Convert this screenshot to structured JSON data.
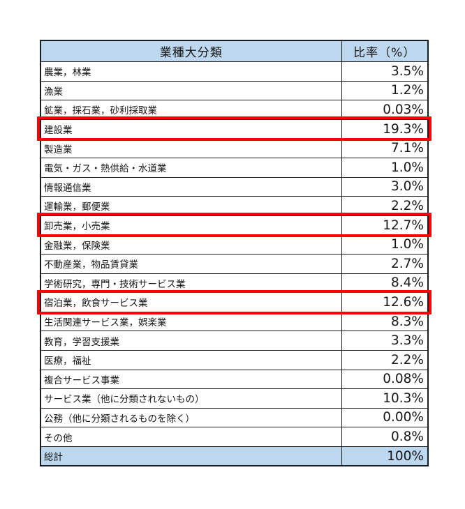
{
  "table": {
    "header": [
      {
        "label": "業種大分類"
      },
      {
        "label": "比率（%）"
      }
    ],
    "rows": [
      {
        "label": "農業，林業",
        "value": "3.5%",
        "highlight": false
      },
      {
        "label": "漁業",
        "value": "1.2%",
        "highlight": false
      },
      {
        "label": "鉱業，採石業，砂利採取業",
        "value": "0.03%",
        "highlight": false
      },
      {
        "label": "建設業",
        "value": "19.3%",
        "highlight": true
      },
      {
        "label": "製造業",
        "value": "7.1%",
        "highlight": false
      },
      {
        "label": "電気・ガス・熱供給・水道業",
        "value": "1.0%",
        "highlight": false
      },
      {
        "label": "情報通信業",
        "value": "3.0%",
        "highlight": false
      },
      {
        "label": "運輸業，郵便業",
        "value": "2.2%",
        "highlight": false
      },
      {
        "label": "卸売業，小売業",
        "value": "12.7%",
        "highlight": true
      },
      {
        "label": "金融業，保険業",
        "value": "1.0%",
        "highlight": false
      },
      {
        "label": "不動産業，物品賃貸業",
        "value": "2.7%",
        "highlight": false
      },
      {
        "label": "学術研究，専門・技術サービス業",
        "value": "8.4%",
        "highlight": false
      },
      {
        "label": "宿泊業，飲食サービス業",
        "value": "12.6%",
        "highlight": true
      },
      {
        "label": "生活関連サービス業，娯楽業",
        "value": "8.3%",
        "highlight": false
      },
      {
        "label": "教育，学習支援業",
        "value": "3.3%",
        "highlight": false
      },
      {
        "label": "医療，福祉",
        "value": "2.2%",
        "highlight": false
      },
      {
        "label": "複合サービス事業",
        "value": "0.08%",
        "highlight": false
      },
      {
        "label": "サービス業（他に分類されないもの）",
        "value": "10.3%",
        "highlight": false
      },
      {
        "label": "公務（他に分類されるものを除く）",
        "value": "0.00%",
        "highlight": false
      },
      {
        "label": "その他",
        "value": "0.8%",
        "highlight": false
      }
    ],
    "total": {
      "label": "総計",
      "value": "100%"
    }
  },
  "colors": {
    "header_fill": "#BDD7EE",
    "total_fill": "#BDD7EE",
    "grid_line": "#1c1c1c",
    "outer_border": "#171c24",
    "highlight_border": "#fe0000",
    "text": "#171717",
    "page_background": "#ffffff"
  },
  "chart_data": {
    "type": "table",
    "title": "",
    "columns": [
      "業種大分類",
      "比率（%）"
    ],
    "categories": [
      "農業，林業",
      "漁業",
      "鉱業，採石業，砂利採取業",
      "建設業",
      "製造業",
      "電気・ガス・熱供給・水道業",
      "情報通信業",
      "運輸業，郵便業",
      "卸売業，小売業",
      "金融業，保険業",
      "不動産業，物品賃貸業",
      "学術研究，専門・技術サービス業",
      "宿泊業，飲食サービス業",
      "生活関連サービス業，娯楽業",
      "教育，学習支援業",
      "医療，福祉",
      "複合サービス事業",
      "サービス業（他に分類されないもの）",
      "公務（他に分類されるものを除く）",
      "その他"
    ],
    "values": [
      3.5,
      1.2,
      0.03,
      19.3,
      7.1,
      1.0,
      3.0,
      2.2,
      12.7,
      1.0,
      2.7,
      8.4,
      12.6,
      8.3,
      3.3,
      2.2,
      0.08,
      10.3,
      0.0,
      0.8
    ],
    "value_labels": [
      "3.5%",
      "1.2%",
      "0.03%",
      "19.3%",
      "7.1%",
      "1.0%",
      "3.0%",
      "2.2%",
      "12.7%",
      "1.0%",
      "2.7%",
      "8.4%",
      "12.6%",
      "8.3%",
      "3.3%",
      "2.2%",
      "0.08%",
      "10.3%",
      "0.00%",
      "0.8%"
    ],
    "total_label": "総計",
    "total_value": 100,
    "total_value_label": "100%",
    "highlighted_categories": [
      "建設業",
      "卸売業，小売業",
      "宿泊業，飲食サービス業"
    ]
  }
}
